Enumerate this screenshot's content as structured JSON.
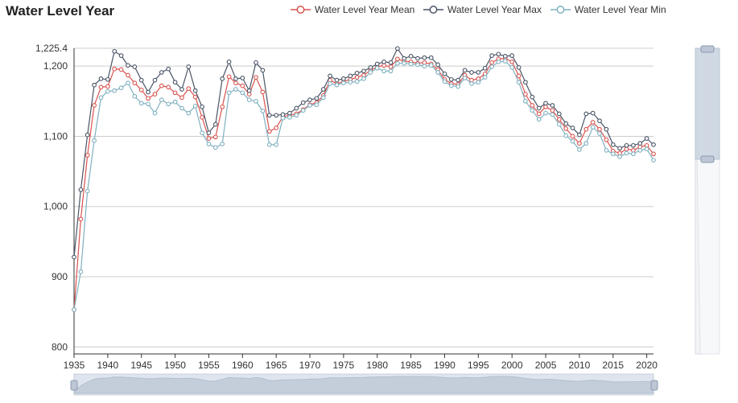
{
  "chart_data": {
    "type": "line",
    "title": "Water Level Year",
    "x_ticks": [
      "1935",
      "1940",
      "1945",
      "1950",
      "1955",
      "1960",
      "1965",
      "1970",
      "1975",
      "1980",
      "1985",
      "1990",
      "1995",
      "2000",
      "2005",
      "2010",
      "2015",
      "2020"
    ],
    "y_ticks": [
      "800",
      "900",
      "1,000",
      "1,100",
      "1,200",
      "1,225.4"
    ],
    "y_tick_values": [
      800,
      900,
      1000,
      1100,
      1200,
      1225.4
    ],
    "xlim": [
      1935,
      2021
    ],
    "ylim": [
      790,
      1225.4
    ],
    "grid": true,
    "legend_position": "top-right",
    "x": [
      1935,
      1936,
      1937,
      1938,
      1939,
      1940,
      1941,
      1942,
      1943,
      1944,
      1945,
      1946,
      1947,
      1948,
      1949,
      1950,
      1951,
      1952,
      1953,
      1954,
      1955,
      1956,
      1957,
      1958,
      1959,
      1960,
      1961,
      1962,
      1963,
      1964,
      1965,
      1966,
      1967,
      1968,
      1969,
      1970,
      1971,
      1972,
      1973,
      1974,
      1975,
      1976,
      1977,
      1978,
      1979,
      1980,
      1981,
      1982,
      1983,
      1984,
      1985,
      1986,
      1987,
      1988,
      1989,
      1990,
      1991,
      1992,
      1993,
      1994,
      1995,
      1996,
      1997,
      1998,
      1999,
      2000,
      2001,
      2002,
      2003,
      2004,
      2005,
      2006,
      2007,
      2008,
      2009,
      2010,
      2011,
      2012,
      2013,
      2014,
      2015,
      2016,
      2017,
      2018,
      2019,
      2020,
      2021
    ],
    "series": [
      {
        "name": "Water Level Year Mean",
        "color": "#d9534f",
        "values": [
          853,
          982,
          1073,
          1144,
          1170,
          1171,
          1196,
          1195,
          1187,
          1176,
          1166,
          1154,
          1160,
          1172,
          1170,
          1162,
          1155,
          1168,
          1156,
          1127,
          1097,
          1099,
          1142,
          1185,
          1176,
          1172,
          1160,
          1184,
          1163,
          1107,
          1112,
          1128,
          1130,
          1132,
          1138,
          1145,
          1148,
          1158,
          1180,
          1175,
          1178,
          1181,
          1184,
          1187,
          1194,
          1199,
          1201,
          1199,
          1210,
          1207,
          1206,
          1204,
          1205,
          1203,
          1195,
          1181,
          1175,
          1174,
          1187,
          1180,
          1182,
          1189,
          1205,
          1210,
          1211,
          1206,
          1186,
          1160,
          1144,
          1132,
          1142,
          1137,
          1124,
          1111,
          1100,
          1090,
          1110,
          1120,
          1110,
          1095,
          1079,
          1076,
          1082,
          1080,
          1085,
          1087,
          1075
        ]
      },
      {
        "name": "Water Level Year Max",
        "color": "#4a5566",
        "values": [
          928,
          1024,
          1102,
          1173,
          1182,
          1181,
          1221,
          1215,
          1201,
          1199,
          1180,
          1163,
          1180,
          1191,
          1196,
          1177,
          1167,
          1199,
          1165,
          1142,
          1105,
          1117,
          1182,
          1206,
          1182,
          1183,
          1165,
          1205,
          1194,
          1130,
          1130,
          1131,
          1133,
          1140,
          1148,
          1152,
          1154,
          1167,
          1186,
          1180,
          1182,
          1186,
          1190,
          1193,
          1198,
          1203,
          1206,
          1205,
          1225,
          1211,
          1214,
          1211,
          1212,
          1212,
          1202,
          1189,
          1181,
          1180,
          1194,
          1191,
          1191,
          1197,
          1215,
          1217,
          1214,
          1215,
          1198,
          1177,
          1156,
          1140,
          1147,
          1144,
          1132,
          1118,
          1112,
          1102,
          1132,
          1133,
          1122,
          1110,
          1088,
          1083,
          1087,
          1087,
          1090,
          1097,
          1088
        ]
      },
      {
        "name": "Water Level Year Min",
        "color": "#7fb0bf",
        "values": [
          853,
          907,
          1022,
          1094,
          1155,
          1164,
          1165,
          1169,
          1176,
          1157,
          1147,
          1146,
          1133,
          1152,
          1146,
          1149,
          1140,
          1133,
          1143,
          1105,
          1089,
          1084,
          1089,
          1162,
          1167,
          1162,
          1152,
          1150,
          1136,
          1088,
          1088,
          1126,
          1127,
          1130,
          1137,
          1144,
          1145,
          1155,
          1175,
          1173,
          1176,
          1177,
          1178,
          1182,
          1191,
          1197,
          1193,
          1193,
          1204,
          1204,
          1203,
          1202,
          1200,
          1201,
          1191,
          1178,
          1172,
          1171,
          1183,
          1175,
          1177,
          1184,
          1199,
          1206,
          1207,
          1198,
          1177,
          1150,
          1137,
          1124,
          1133,
          1131,
          1117,
          1101,
          1093,
          1081,
          1090,
          1113,
          1104,
          1080,
          1075,
          1071,
          1076,
          1075,
          1080,
          1082,
          1066
        ]
      }
    ],
    "data_zoom": {
      "range": [
        0,
        1
      ]
    }
  }
}
